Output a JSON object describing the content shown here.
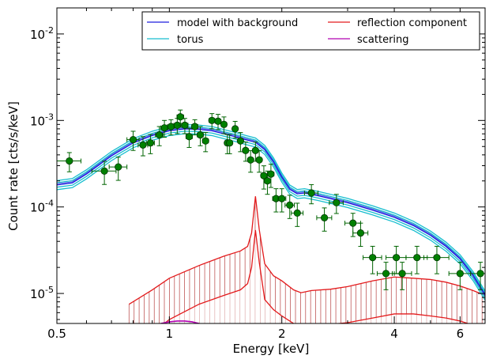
{
  "chart_data": {
    "type": "line",
    "xlabel": "Energy [keV]",
    "ylabel": "Count rate [cts/s/keV]",
    "xscale": "log",
    "yscale": "log",
    "xlim": [
      0.5,
      7.0
    ],
    "ylim": [
      4.5e-06,
      0.02
    ],
    "xticks": [
      {
        "value": 0.5,
        "label": "0.5"
      },
      {
        "value": 1,
        "label": "1"
      },
      {
        "value": 2,
        "label": "2"
      },
      {
        "value": 4,
        "label": "4"
      },
      {
        "value": 6,
        "label": "6"
      }
    ],
    "yticks": [
      {
        "value": 1e-05,
        "base": "10",
        "exp": "-5"
      },
      {
        "value": 0.0001,
        "base": "10",
        "exp": "-4"
      },
      {
        "value": 0.001,
        "base": "10",
        "exp": "-3"
      },
      {
        "value": 0.01,
        "base": "10",
        "exp": "-2"
      }
    ],
    "legend_position": "top-right",
    "grid": false,
    "colors": {
      "model": "#1f1fdd",
      "torus": "#17becf",
      "reflection": "#e31a1c",
      "reflection_fill": "#b33a3a",
      "scattering": "#b000b0",
      "data_marker": "#008000",
      "data_error": "#006400"
    },
    "series": [
      {
        "name": "model with background",
        "x": [
          0.5,
          0.55,
          0.6,
          0.7,
          0.8,
          0.9,
          1.0,
          1.1,
          1.2,
          1.3,
          1.4,
          1.5,
          1.6,
          1.7,
          1.8,
          1.9,
          2.0,
          2.1,
          2.2,
          2.3,
          2.5,
          3.0,
          3.5,
          4.0,
          4.5,
          5.0,
          5.5,
          6.0,
          6.5,
          7.0
        ],
        "y": [
          0.00018,
          0.00019,
          0.00024,
          0.00039,
          0.00055,
          0.00067,
          0.00076,
          0.0008,
          0.00079,
          0.00076,
          0.0007,
          0.00065,
          0.0006,
          0.00056,
          0.00046,
          0.00033,
          0.00022,
          0.00016,
          0.000142,
          0.000145,
          0.000135,
          0.000112,
          9.2e-05,
          7.6e-05,
          6.1e-05,
          4.7e-05,
          3.5e-05,
          2.5e-05,
          1.6e-05,
          9.5e-06
        ]
      },
      {
        "name": "torus",
        "band": [
          0.88,
          0.94,
          1.06,
          1.12
        ],
        "x": [
          0.5,
          0.55,
          0.6,
          0.7,
          0.8,
          0.9,
          1.0,
          1.1,
          1.2,
          1.3,
          1.4,
          1.5,
          1.6,
          1.7,
          1.8,
          1.9,
          2.0,
          2.1,
          2.2,
          2.3,
          2.5,
          3.0,
          3.5,
          4.0,
          4.5,
          5.0,
          5.5,
          6.0,
          6.5,
          7.0
        ],
        "y": [
          0.00018,
          0.00019,
          0.00024,
          0.00039,
          0.00055,
          0.00067,
          0.00076,
          0.0008,
          0.00079,
          0.00076,
          0.0007,
          0.00065,
          0.0006,
          0.00056,
          0.00046,
          0.00033,
          0.00022,
          0.00016,
          0.000142,
          0.000145,
          0.000135,
          0.000112,
          9.2e-05,
          7.6e-05,
          6.1e-05,
          4.7e-05,
          3.5e-05,
          2.5e-05,
          1.6e-05,
          9.5e-06
        ]
      },
      {
        "name": "reflection component",
        "x": [
          0.78,
          0.9,
          1.0,
          1.2,
          1.4,
          1.55,
          1.62,
          1.66,
          1.7,
          1.74,
          1.8,
          1.9,
          2.0,
          2.15,
          2.25,
          2.4,
          2.7,
          3.0,
          3.5,
          4.0,
          4.5,
          5.0,
          5.5,
          6.0,
          6.5,
          7.0
        ],
        "y_upper": [
          7.5e-06,
          1.1e-05,
          1.5e-05,
          2.1e-05,
          2.7e-05,
          3.1e-05,
          3.5e-05,
          5e-05,
          0.000133,
          5.5e-05,
          2.2e-05,
          1.6e-05,
          1.4e-05,
          1.1e-05,
          1.02e-05,
          1.08e-05,
          1.12e-05,
          1.2e-05,
          1.4e-05,
          1.55e-05,
          1.5e-05,
          1.45e-05,
          1.35e-05,
          1.22e-05,
          1.08e-05,
          9.5e-06
        ],
        "y_lower": [
          2.5e-06,
          3.5e-06,
          5e-06,
          7.5e-06,
          9.5e-06,
          1.1e-05,
          1.3e-05,
          2e-05,
          5.4e-05,
          2.3e-05,
          8.5e-06,
          6.5e-06,
          5.5e-06,
          4.5e-06,
          4e-06,
          4.2e-06,
          4.4e-06,
          4.6e-06,
          5.2e-06,
          5.8e-06,
          5.8e-06,
          5.5e-06,
          5.2e-06,
          4.8e-06,
          4.3e-06,
          3.8e-06
        ]
      },
      {
        "name": "scattering",
        "x": [
          0.9,
          0.95,
          1.0,
          1.05,
          1.1,
          1.15,
          1.2,
          1.3
        ],
        "y": [
          4.1e-06,
          4.5e-06,
          4.7e-06,
          4.8e-06,
          4.8e-06,
          4.7e-06,
          4.5e-06,
          4e-06
        ]
      }
    ],
    "data_points": {
      "x": [
        0.54,
        0.67,
        0.73,
        0.8,
        0.85,
        0.89,
        0.94,
        0.97,
        1.01,
        1.05,
        1.07,
        1.1,
        1.13,
        1.17,
        1.21,
        1.25,
        1.3,
        1.35,
        1.4,
        1.43,
        1.45,
        1.5,
        1.55,
        1.6,
        1.65,
        1.7,
        1.74,
        1.79,
        1.83,
        1.87,
        1.93,
        2.0,
        2.1,
        2.2,
        2.4,
        2.6,
        2.8,
        3.1,
        3.25,
        3.5,
        3.8,
        4.05,
        4.2,
        4.6,
        5.2,
        6.0,
        6.8
      ],
      "y": [
        0.00034,
        0.00026,
        0.00029,
        0.0006,
        0.00052,
        0.00055,
        0.00068,
        0.00082,
        0.00085,
        0.00088,
        0.0011,
        0.00088,
        0.00065,
        0.00085,
        0.00068,
        0.00058,
        0.001,
        0.00098,
        0.0009,
        0.00055,
        0.00055,
        0.0008,
        0.00058,
        0.00045,
        0.00035,
        0.00045,
        0.00035,
        0.00023,
        0.0002,
        0.00024,
        0.000125,
        0.000125,
        0.000105,
        8.5e-05,
        0.000145,
        7.5e-05,
        0.000112,
        6.5e-05,
        5e-05,
        2.6e-05,
        1.7e-05,
        2.6e-05,
        1.7e-05,
        2.6e-05,
        2.6e-05,
        1.7e-05,
        1.7e-05
      ],
      "xerr": [
        0.04,
        0.05,
        0.04,
        0.03,
        0.025,
        0.022,
        0.022,
        0.022,
        0.022,
        0.022,
        0.022,
        0.022,
        0.022,
        0.022,
        0.022,
        0.022,
        0.022,
        0.022,
        0.022,
        0.022,
        0.022,
        0.022,
        0.022,
        0.025,
        0.025,
        0.025,
        0.025,
        0.03,
        0.03,
        0.035,
        0.04,
        0.05,
        0.06,
        0.08,
        0.1,
        0.12,
        0.12,
        0.15,
        0.15,
        0.2,
        0.2,
        0.25,
        0.25,
        0.3,
        0.4,
        0.4,
        0.4
      ],
      "yerr_frac": [
        0.25,
        0.3,
        0.3,
        0.25,
        0.25,
        0.25,
        0.25,
        0.22,
        0.2,
        0.2,
        0.2,
        0.2,
        0.25,
        0.2,
        0.25,
        0.25,
        0.2,
        0.2,
        0.22,
        0.25,
        0.25,
        0.22,
        0.25,
        0.25,
        0.28,
        0.25,
        0.28,
        0.3,
        0.3,
        0.3,
        0.3,
        0.3,
        0.3,
        0.3,
        0.25,
        0.3,
        0.25,
        0.3,
        0.3,
        0.35,
        0.35,
        0.35,
        0.35,
        0.35,
        0.35,
        0.35,
        0.35
      ]
    }
  },
  "legend": {
    "items": [
      {
        "label": "model with background",
        "color": "#1f1fdd"
      },
      {
        "label": "reflection component",
        "color": "#e31a1c"
      },
      {
        "label": "torus",
        "color": "#17becf"
      },
      {
        "label": "scattering",
        "color": "#b000b0"
      }
    ]
  }
}
